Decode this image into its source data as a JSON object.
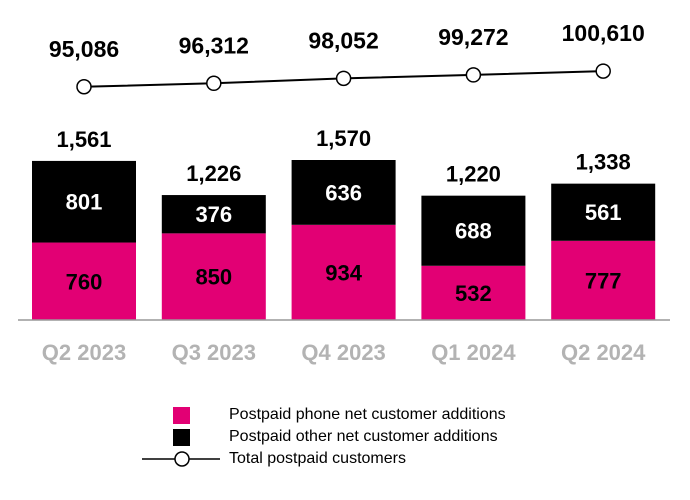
{
  "chart_data": {
    "type": "bar",
    "stacked": true,
    "categories": [
      "Q2 2023",
      "Q3 2023",
      "Q4 2023",
      "Q1 2024",
      "Q2 2024"
    ],
    "series": [
      {
        "name": "Postpaid phone net customer additions",
        "values": [
          760,
          850,
          934,
          532,
          777
        ],
        "color": "#E20074"
      },
      {
        "name": "Postpaid other net customer additions",
        "values": [
          801,
          376,
          636,
          688,
          561
        ],
        "color": "#000000"
      }
    ],
    "totals": [
      "1,561",
      "1,226",
      "1,570",
      "1,220",
      "1,338"
    ],
    "line_series": {
      "name": "Total postpaid customers",
      "values": [
        95086,
        96312,
        98052,
        99272,
        100610
      ],
      "labels": [
        "95,086",
        "96,312",
        "98,052",
        "99,272",
        "100,610"
      ]
    },
    "legend_position": "bottom",
    "grid": false,
    "tick_label_color": "#B3B3B3"
  }
}
